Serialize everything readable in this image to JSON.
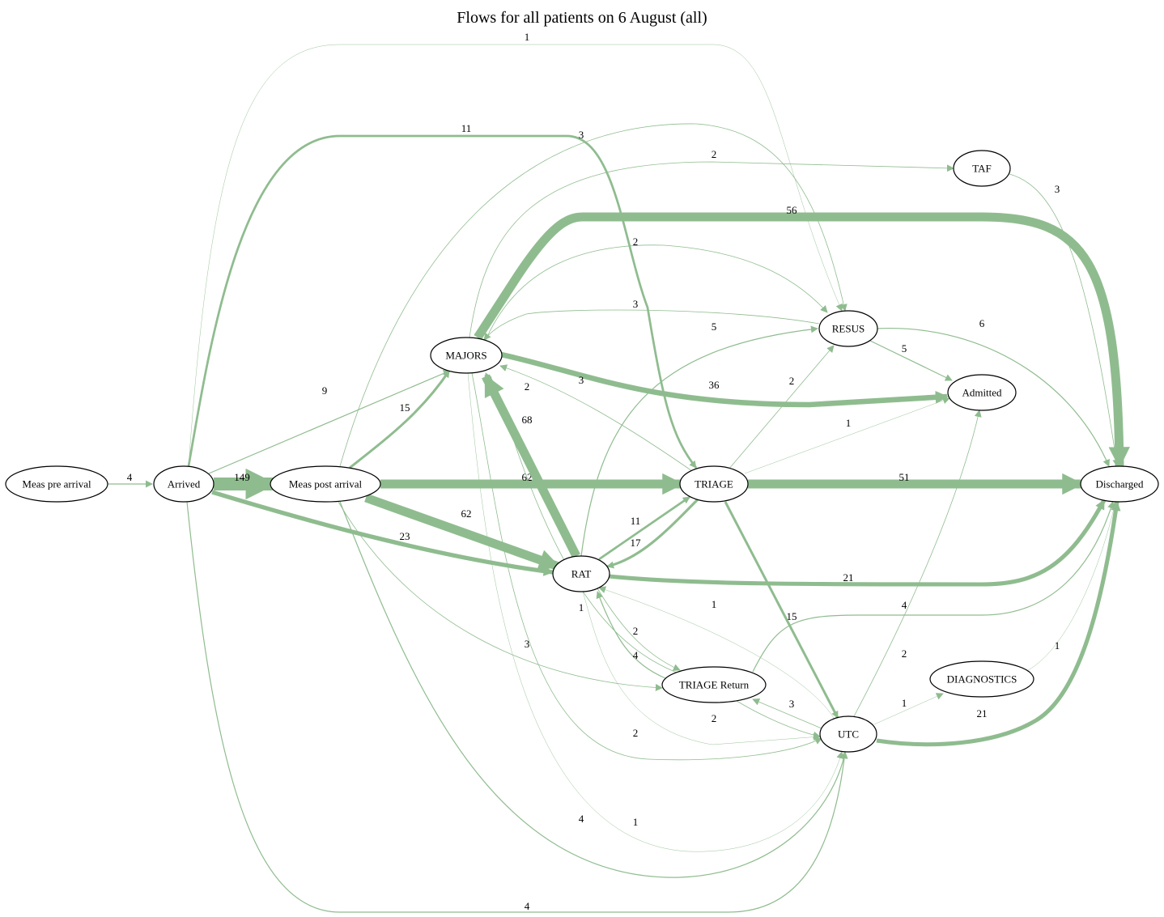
{
  "title": "Flows for all patients on 6 August (all)",
  "colors": {
    "edge": "#8fbc8f",
    "node_stroke": "#000000",
    "node_fill": "#ffffff"
  },
  "nodes": [
    {
      "id": "meas_pre",
      "label": "Meas pre arrival"
    },
    {
      "id": "arrived",
      "label": "Arrived"
    },
    {
      "id": "meas_post",
      "label": "Meas post arrival"
    },
    {
      "id": "majors",
      "label": "MAJORS"
    },
    {
      "id": "rat",
      "label": "RAT"
    },
    {
      "id": "triage",
      "label": "TRIAGE"
    },
    {
      "id": "triage_return",
      "label": "TRIAGE Return"
    },
    {
      "id": "utc",
      "label": "UTC"
    },
    {
      "id": "resus",
      "label": "RESUS"
    },
    {
      "id": "admitted",
      "label": "Admitted"
    },
    {
      "id": "taf",
      "label": "TAF"
    },
    {
      "id": "diagnostics",
      "label": "DIAGNOSTICS"
    },
    {
      "id": "discharged",
      "label": "Discharged"
    }
  ],
  "edges": [
    {
      "from": "meas_pre",
      "to": "arrived",
      "value": 4
    },
    {
      "from": "arrived",
      "to": "meas_post",
      "value": 149
    },
    {
      "from": "arrived",
      "to": "resus",
      "value": 1
    },
    {
      "from": "arrived",
      "to": "triage",
      "value": 11
    },
    {
      "from": "arrived",
      "to": "majors",
      "value": 9
    },
    {
      "from": "arrived",
      "to": "rat",
      "value": 23
    },
    {
      "from": "arrived",
      "to": "utc",
      "value": 4
    },
    {
      "from": "meas_post",
      "to": "majors",
      "value": 15
    },
    {
      "from": "meas_post",
      "to": "triage",
      "value": 62
    },
    {
      "from": "meas_post",
      "to": "rat",
      "value": 62
    },
    {
      "from": "meas_post",
      "to": "resus",
      "value": 3
    },
    {
      "from": "meas_post",
      "to": "triage_return",
      "value": 3
    },
    {
      "from": "meas_post",
      "to": "utc",
      "value": 4
    },
    {
      "from": "majors",
      "to": "taf",
      "value": 2
    },
    {
      "from": "majors",
      "to": "discharged",
      "value": 56
    },
    {
      "from": "majors",
      "to": "resus",
      "value": 2
    },
    {
      "from": "majors",
      "to": "admitted",
      "value": 36
    },
    {
      "from": "majors",
      "to": "utc",
      "value": 2
    },
    {
      "from": "majors",
      "to": "triage_return",
      "value": 1
    },
    {
      "from": "resus",
      "to": "majors",
      "value": 3
    },
    {
      "from": "rat",
      "to": "majors",
      "value": 68
    },
    {
      "from": "rat",
      "to": "resus",
      "value": 5
    },
    {
      "from": "rat",
      "to": "triage",
      "value": 11
    },
    {
      "from": "rat",
      "to": "discharged",
      "value": 21
    },
    {
      "from": "rat",
      "to": "triage_return",
      "value": 2
    },
    {
      "from": "triage",
      "to": "majors",
      "value": 3
    },
    {
      "from": "triage",
      "to": "resus",
      "value": 2
    },
    {
      "from": "triage",
      "to": "admitted",
      "value": 1
    },
    {
      "from": "triage",
      "to": "discharged",
      "value": 51
    },
    {
      "from": "triage",
      "to": "rat",
      "value": 17
    },
    {
      "from": "triage",
      "to": "utc",
      "value": 15
    },
    {
      "from": "triage_return",
      "to": "majors",
      "value": 2
    },
    {
      "from": "triage_return",
      "to": "rat",
      "value": 4
    },
    {
      "from": "triage_return",
      "to": "discharged",
      "value": 4
    },
    {
      "from": "triage_return",
      "to": "utc",
      "value": 2
    },
    {
      "from": "utc",
      "to": "rat",
      "value": 1
    },
    {
      "from": "utc",
      "to": "triage_return",
      "value": 3
    },
    {
      "from": "utc",
      "to": "admitted",
      "value": 2
    },
    {
      "from": "utc",
      "to": "diagnostics",
      "value": 1
    },
    {
      "from": "utc",
      "to": "discharged",
      "value": 21
    },
    {
      "from": "rat",
      "to": "utc",
      "value": 1
    },
    {
      "from": "resus",
      "to": "admitted",
      "value": 5
    },
    {
      "from": "resus",
      "to": "discharged",
      "value": 6
    },
    {
      "from": "taf",
      "to": "discharged",
      "value": 3
    },
    {
      "from": "diagnostics",
      "to": "discharged",
      "value": 1
    }
  ]
}
